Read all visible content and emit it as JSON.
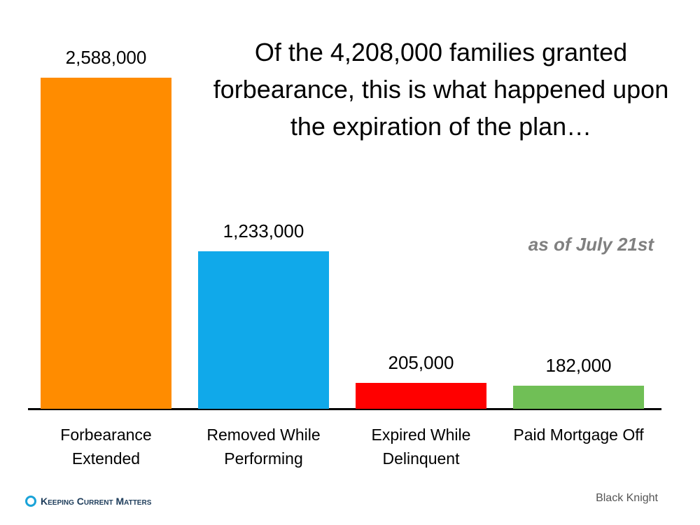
{
  "chart_data": {
    "type": "bar",
    "title": "Of the 4,208,000 families granted forbearance, this is what happened upon the expiration of the plan…",
    "subtitle": "as of July 21st",
    "categories": [
      "Forbearance Extended",
      "Removed While Performing",
      "Expired While Delinquent",
      "Paid Mortgage Off"
    ],
    "values": [
      2588000,
      1233000,
      205000,
      182000
    ],
    "value_labels": [
      "2,588,000",
      "1,233,000",
      "205,000",
      "182,000"
    ],
    "colors": [
      "#ff8c00",
      "#10a9ea",
      "#ff0000",
      "#70bf56"
    ],
    "source": "Black Knight",
    "logo": "Keeping Current Matters"
  }
}
